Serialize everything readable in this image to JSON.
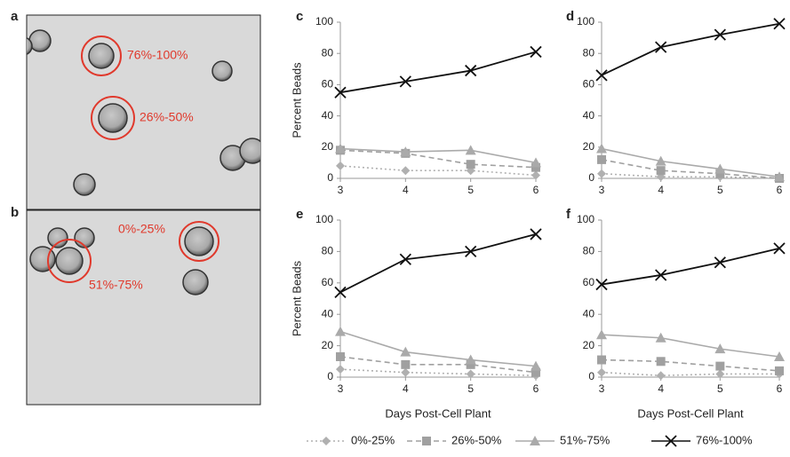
{
  "images": [
    {
      "letter": "a",
      "labels": [
        "76%-100%",
        "26%-50%"
      ]
    },
    {
      "letter": "b",
      "labels": [
        "0%-25%",
        "51%-75%"
      ]
    }
  ],
  "chart_data": [
    {
      "type": "line",
      "letter": "c",
      "ylabel": "Percent Beads",
      "x": [
        3,
        4,
        5,
        6
      ],
      "xlim": [
        3,
        6
      ],
      "xticks": [
        3,
        4,
        5,
        6
      ],
      "ylim": [
        0,
        100
      ],
      "yticks": [
        0,
        20,
        40,
        60,
        80,
        100
      ],
      "series": [
        {
          "name": "0%-25%",
          "color": "#b0b0b0",
          "marker": "diamond",
          "line_style": "dotted",
          "values": [
            8,
            5,
            5,
            2
          ]
        },
        {
          "name": "26%-50%",
          "color": "#a0a0a0",
          "marker": "square",
          "line_style": "dashed",
          "values": [
            18,
            16,
            9,
            7
          ]
        },
        {
          "name": "51%-75%",
          "color": "#aaaaaa",
          "marker": "triangle",
          "line_style": "solid",
          "values": [
            19,
            17,
            18,
            10
          ]
        },
        {
          "name": "76%-100%",
          "color": "#111111",
          "marker": "x",
          "line_style": "solid",
          "values": [
            55,
            62,
            69,
            81
          ]
        }
      ]
    },
    {
      "type": "line",
      "letter": "d",
      "x": [
        3,
        4,
        5,
        6
      ],
      "xlim": [
        3,
        6
      ],
      "xticks": [
        3,
        4,
        5,
        6
      ],
      "ylim": [
        0,
        100
      ],
      "yticks": [
        0,
        20,
        40,
        60,
        80,
        100
      ],
      "series": [
        {
          "name": "0%-25%",
          "color": "#b0b0b0",
          "marker": "diamond",
          "line_style": "dotted",
          "values": [
            3,
            1,
            1,
            0
          ]
        },
        {
          "name": "26%-50%",
          "color": "#a0a0a0",
          "marker": "square",
          "line_style": "dashed",
          "values": [
            12,
            5,
            3,
            0
          ]
        },
        {
          "name": "51%-75%",
          "color": "#aaaaaa",
          "marker": "triangle",
          "line_style": "solid",
          "values": [
            19,
            11,
            6,
            1
          ]
        },
        {
          "name": "76%-100%",
          "color": "#111111",
          "marker": "x",
          "line_style": "solid",
          "values": [
            66,
            84,
            92,
            99
          ]
        }
      ]
    },
    {
      "type": "line",
      "letter": "e",
      "ylabel": "Percent Beads",
      "xlabel": "Days Post-Cell Plant",
      "x": [
        3,
        4,
        5,
        6
      ],
      "xlim": [
        3,
        6
      ],
      "xticks": [
        3,
        4,
        5,
        6
      ],
      "ylim": [
        0,
        100
      ],
      "yticks": [
        0,
        20,
        40,
        60,
        80,
        100
      ],
      "series": [
        {
          "name": "0%-25%",
          "color": "#b0b0b0",
          "marker": "diamond",
          "line_style": "dotted",
          "values": [
            5,
            3,
            2,
            1
          ]
        },
        {
          "name": "26%-50%",
          "color": "#a0a0a0",
          "marker": "square",
          "line_style": "dashed",
          "values": [
            13,
            8,
            8,
            3
          ]
        },
        {
          "name": "51%-75%",
          "color": "#aaaaaa",
          "marker": "triangle",
          "line_style": "solid",
          "values": [
            29,
            16,
            11,
            7
          ]
        },
        {
          "name": "76%-100%",
          "color": "#111111",
          "marker": "x",
          "line_style": "solid",
          "values": [
            54,
            75,
            80,
            91
          ]
        }
      ]
    },
    {
      "type": "line",
      "letter": "f",
      "xlabel": "Days Post-Cell Plant",
      "x": [
        3,
        4,
        5,
        6
      ],
      "xlim": [
        3,
        6
      ],
      "xticks": [
        3,
        4,
        5,
        6
      ],
      "ylim": [
        0,
        100
      ],
      "yticks": [
        0,
        20,
        40,
        60,
        80,
        100
      ],
      "series": [
        {
          "name": "0%-25%",
          "color": "#b0b0b0",
          "marker": "diamond",
          "line_style": "dotted",
          "values": [
            3,
            1,
            2,
            2
          ]
        },
        {
          "name": "26%-50%",
          "color": "#a0a0a0",
          "marker": "square",
          "line_style": "dashed",
          "values": [
            11,
            10,
            7,
            4
          ]
        },
        {
          "name": "51%-75%",
          "color": "#aaaaaa",
          "marker": "triangle",
          "line_style": "solid",
          "values": [
            27,
            25,
            18,
            13
          ]
        },
        {
          "name": "76%-100%",
          "color": "#111111",
          "marker": "x",
          "line_style": "solid",
          "values": [
            59,
            65,
            73,
            82
          ]
        }
      ]
    }
  ]
}
